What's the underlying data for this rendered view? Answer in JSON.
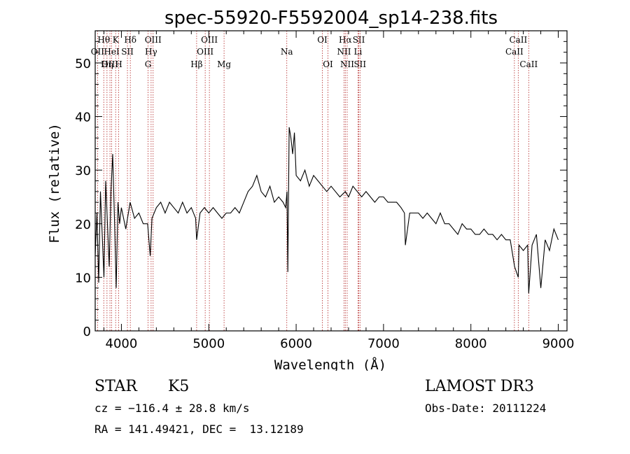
{
  "chart_data": {
    "type": "line",
    "title": "spec-55920-F5592004_sp14-238.fits",
    "xlabel": "Wavelength (Å)",
    "ylabel": "Flux (relative)",
    "xlim": [
      3700,
      9100
    ],
    "ylim": [
      0,
      56
    ],
    "xticks": [
      4000,
      5000,
      6000,
      7000,
      8000,
      9000
    ],
    "yticks": [
      0,
      10,
      20,
      30,
      40,
      50
    ],
    "series": [
      {
        "name": "flux",
        "x": [
          3700,
          3720,
          3740,
          3760,
          3780,
          3800,
          3820,
          3840,
          3860,
          3880,
          3900,
          3920,
          3940,
          3960,
          3980,
          4000,
          4050,
          4100,
          4150,
          4200,
          4250,
          4300,
          4330,
          4350,
          4400,
          4450,
          4500,
          4550,
          4600,
          4650,
          4700,
          4750,
          4800,
          4850,
          4861,
          4900,
          4950,
          5000,
          5050,
          5100,
          5150,
          5200,
          5250,
          5300,
          5350,
          5400,
          5450,
          5500,
          5550,
          5600,
          5650,
          5700,
          5750,
          5800,
          5850,
          5880,
          5895,
          5905,
          5920,
          5940,
          5960,
          5980,
          6000,
          6050,
          6100,
          6150,
          6200,
          6250,
          6300,
          6350,
          6400,
          6450,
          6500,
          6563,
          6600,
          6650,
          6700,
          6750,
          6800,
          6850,
          6900,
          6950,
          7000,
          7050,
          7100,
          7150,
          7200,
          7240,
          7250,
          7300,
          7350,
          7400,
          7450,
          7500,
          7550,
          7600,
          7650,
          7700,
          7750,
          7800,
          7850,
          7900,
          7950,
          8000,
          8050,
          8100,
          8150,
          8200,
          8250,
          8300,
          8350,
          8400,
          8450,
          8500,
          8542,
          8550,
          8600,
          8650,
          8662,
          8700,
          8750,
          8800,
          8850,
          8900,
          8950,
          9000
        ],
        "values": [
          14,
          22,
          9,
          26,
          18,
          10,
          28,
          20,
          12,
          26,
          33,
          21,
          8,
          24,
          20,
          23,
          19,
          24,
          21,
          22,
          20,
          20,
          14,
          21,
          23,
          24,
          22,
          24,
          23,
          22,
          24,
          22,
          23,
          21,
          17,
          22,
          23,
          22,
          23,
          22,
          21,
          22,
          22,
          23,
          22,
          24,
          26,
          27,
          29,
          26,
          25,
          27,
          24,
          25,
          24,
          23,
          26,
          11,
          38,
          36,
          33,
          37,
          29,
          28,
          30,
          27,
          29,
          28,
          27,
          26,
          27,
          26,
          25,
          26,
          25,
          27,
          26,
          25,
          26,
          25,
          24,
          25,
          25,
          24,
          24,
          24,
          23,
          22,
          16,
          22,
          22,
          22,
          21,
          22,
          21,
          20,
          22,
          20,
          20,
          19,
          18,
          20,
          19,
          19,
          18,
          18,
          19,
          18,
          18,
          17,
          18,
          17,
          17,
          12,
          10,
          16,
          15,
          16,
          7,
          16,
          18,
          8,
          17,
          15,
          19,
          17
        ]
      }
    ],
    "spectral_lines": [
      {
        "label": "Hθ",
        "x": 3798,
        "row": 1
      },
      {
        "label": "OII",
        "x": 3727,
        "row": 2
      },
      {
        "label": "OIII",
        "x": 3869,
        "row": 3
      },
      {
        "label": "Hη",
        "x": 3835,
        "row": 3
      },
      {
        "label": "K",
        "x": 3934,
        "row": 1
      },
      {
        "label": "HeI",
        "x": 3889,
        "row": 2
      },
      {
        "label": "H",
        "x": 3969,
        "row": 3
      },
      {
        "label": "SII",
        "x": 4069,
        "row": 2
      },
      {
        "label": "Hδ",
        "x": 4102,
        "row": 1
      },
      {
        "label": "OIII",
        "x": 4363,
        "row": 1
      },
      {
        "label": "Hγ",
        "x": 4340,
        "row": 2
      },
      {
        "label": "G",
        "x": 4305,
        "row": 3
      },
      {
        "label": "Hβ",
        "x": 4861,
        "row": 3
      },
      {
        "label": "OIII",
        "x": 5007,
        "row": 1
      },
      {
        "label": "OIII",
        "x": 4959,
        "row": 2
      },
      {
        "label": "Mg",
        "x": 5175,
        "row": 3
      },
      {
        "label": "Na",
        "x": 5893,
        "row": 2
      },
      {
        "label": "OI",
        "x": 6300,
        "row": 1
      },
      {
        "label": "OI",
        "x": 6364,
        "row": 3
      },
      {
        "label": "Hα",
        "x": 6563,
        "row": 1
      },
      {
        "label": "NII",
        "x": 6548,
        "row": 2
      },
      {
        "label": "NII",
        "x": 6584,
        "row": 3
      },
      {
        "label": "SII",
        "x": 6717,
        "row": 1
      },
      {
        "label": "Li",
        "x": 6708,
        "row": 2
      },
      {
        "label": "SII",
        "x": 6731,
        "row": 3
      },
      {
        "label": "CaII",
        "x": 8542,
        "row": 1
      },
      {
        "label": "CaII",
        "x": 8498,
        "row": 2
      },
      {
        "label": "CaII",
        "x": 8662,
        "row": 3
      }
    ]
  },
  "info": {
    "class": "STAR",
    "subclass": "K5",
    "survey": "LAMOST DR3",
    "cz": "cz = −116.4 ± 28.8 km/s",
    "obs_date": "Obs-Date: 20111224",
    "coords": "RA = 141.49421, DEC =  13.12189"
  },
  "colors": {
    "line_marker": "#b22222",
    "spectrum": "#000000"
  }
}
